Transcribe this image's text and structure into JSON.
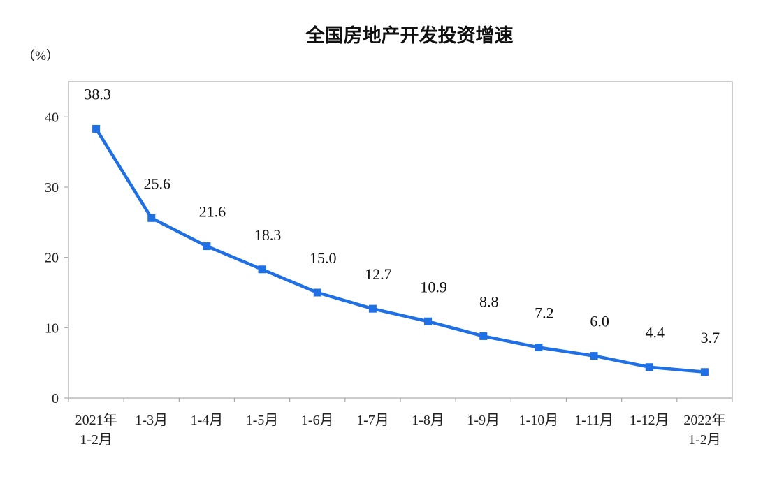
{
  "chart_data": {
    "type": "line",
    "title": "全国房地产开发投资增速",
    "unit_label": "（%）",
    "categories": [
      [
        "2021年",
        "1-2月"
      ],
      [
        "1-3月"
      ],
      [
        "1-4月"
      ],
      [
        "1-5月"
      ],
      [
        "1-6月"
      ],
      [
        "1-7月"
      ],
      [
        "1-8月"
      ],
      [
        "1-9月"
      ],
      [
        "1-10月"
      ],
      [
        "1-11月"
      ],
      [
        "1-12月"
      ],
      [
        "2022年",
        "1-2月"
      ]
    ],
    "values": [
      38.3,
      25.6,
      21.6,
      18.3,
      15.0,
      12.7,
      10.9,
      8.8,
      7.2,
      6.0,
      4.4,
      3.7
    ],
    "data_labels": [
      "38.3",
      "25.6",
      "21.6",
      "18.3",
      "15.0",
      "12.7",
      "10.9",
      "8.8",
      "7.2",
      "6.0",
      "4.4",
      "3.7"
    ],
    "yticks": [
      "0",
      "10",
      "20",
      "30",
      "40"
    ],
    "ylim": [
      0,
      45
    ],
    "grid": false,
    "line_color": "#1f6fe5",
    "axis_color": "#a9a9a9"
  }
}
